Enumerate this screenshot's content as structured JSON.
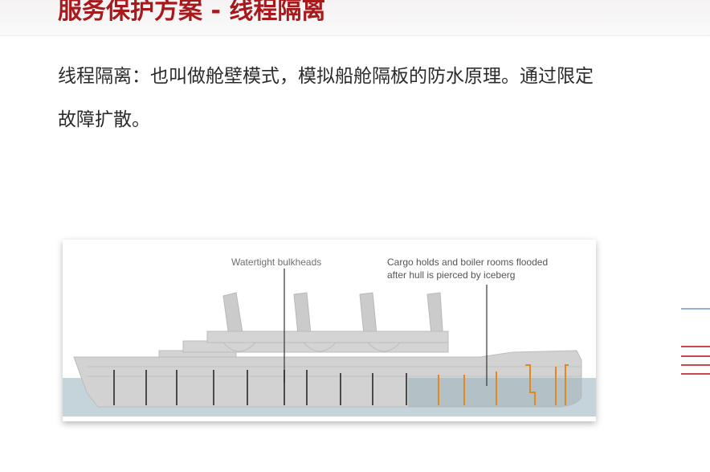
{
  "slide": {
    "title": "服务保护方案 - 线程隔离",
    "paragraph": "线程隔离：也叫做舱壁模式，模拟船舱隔板的防水原理。通过限定\n故障扩散。"
  },
  "figure": {
    "bulkheads_label": "Watertight bulkheads",
    "flood_label_line1": "Cargo holds and boiler rooms flooded",
    "flood_label_line2": "after hull is pierced by iceberg"
  },
  "colors": {
    "title": "#a8191c",
    "water": "#c5d4da",
    "hull": "#cfcfcf",
    "bulkhead_dry": "#4a4a4a",
    "bulkhead_flooded": "#e08a1e",
    "deco_blue": "#8fb2e0",
    "deco_red": "#c9474b"
  }
}
